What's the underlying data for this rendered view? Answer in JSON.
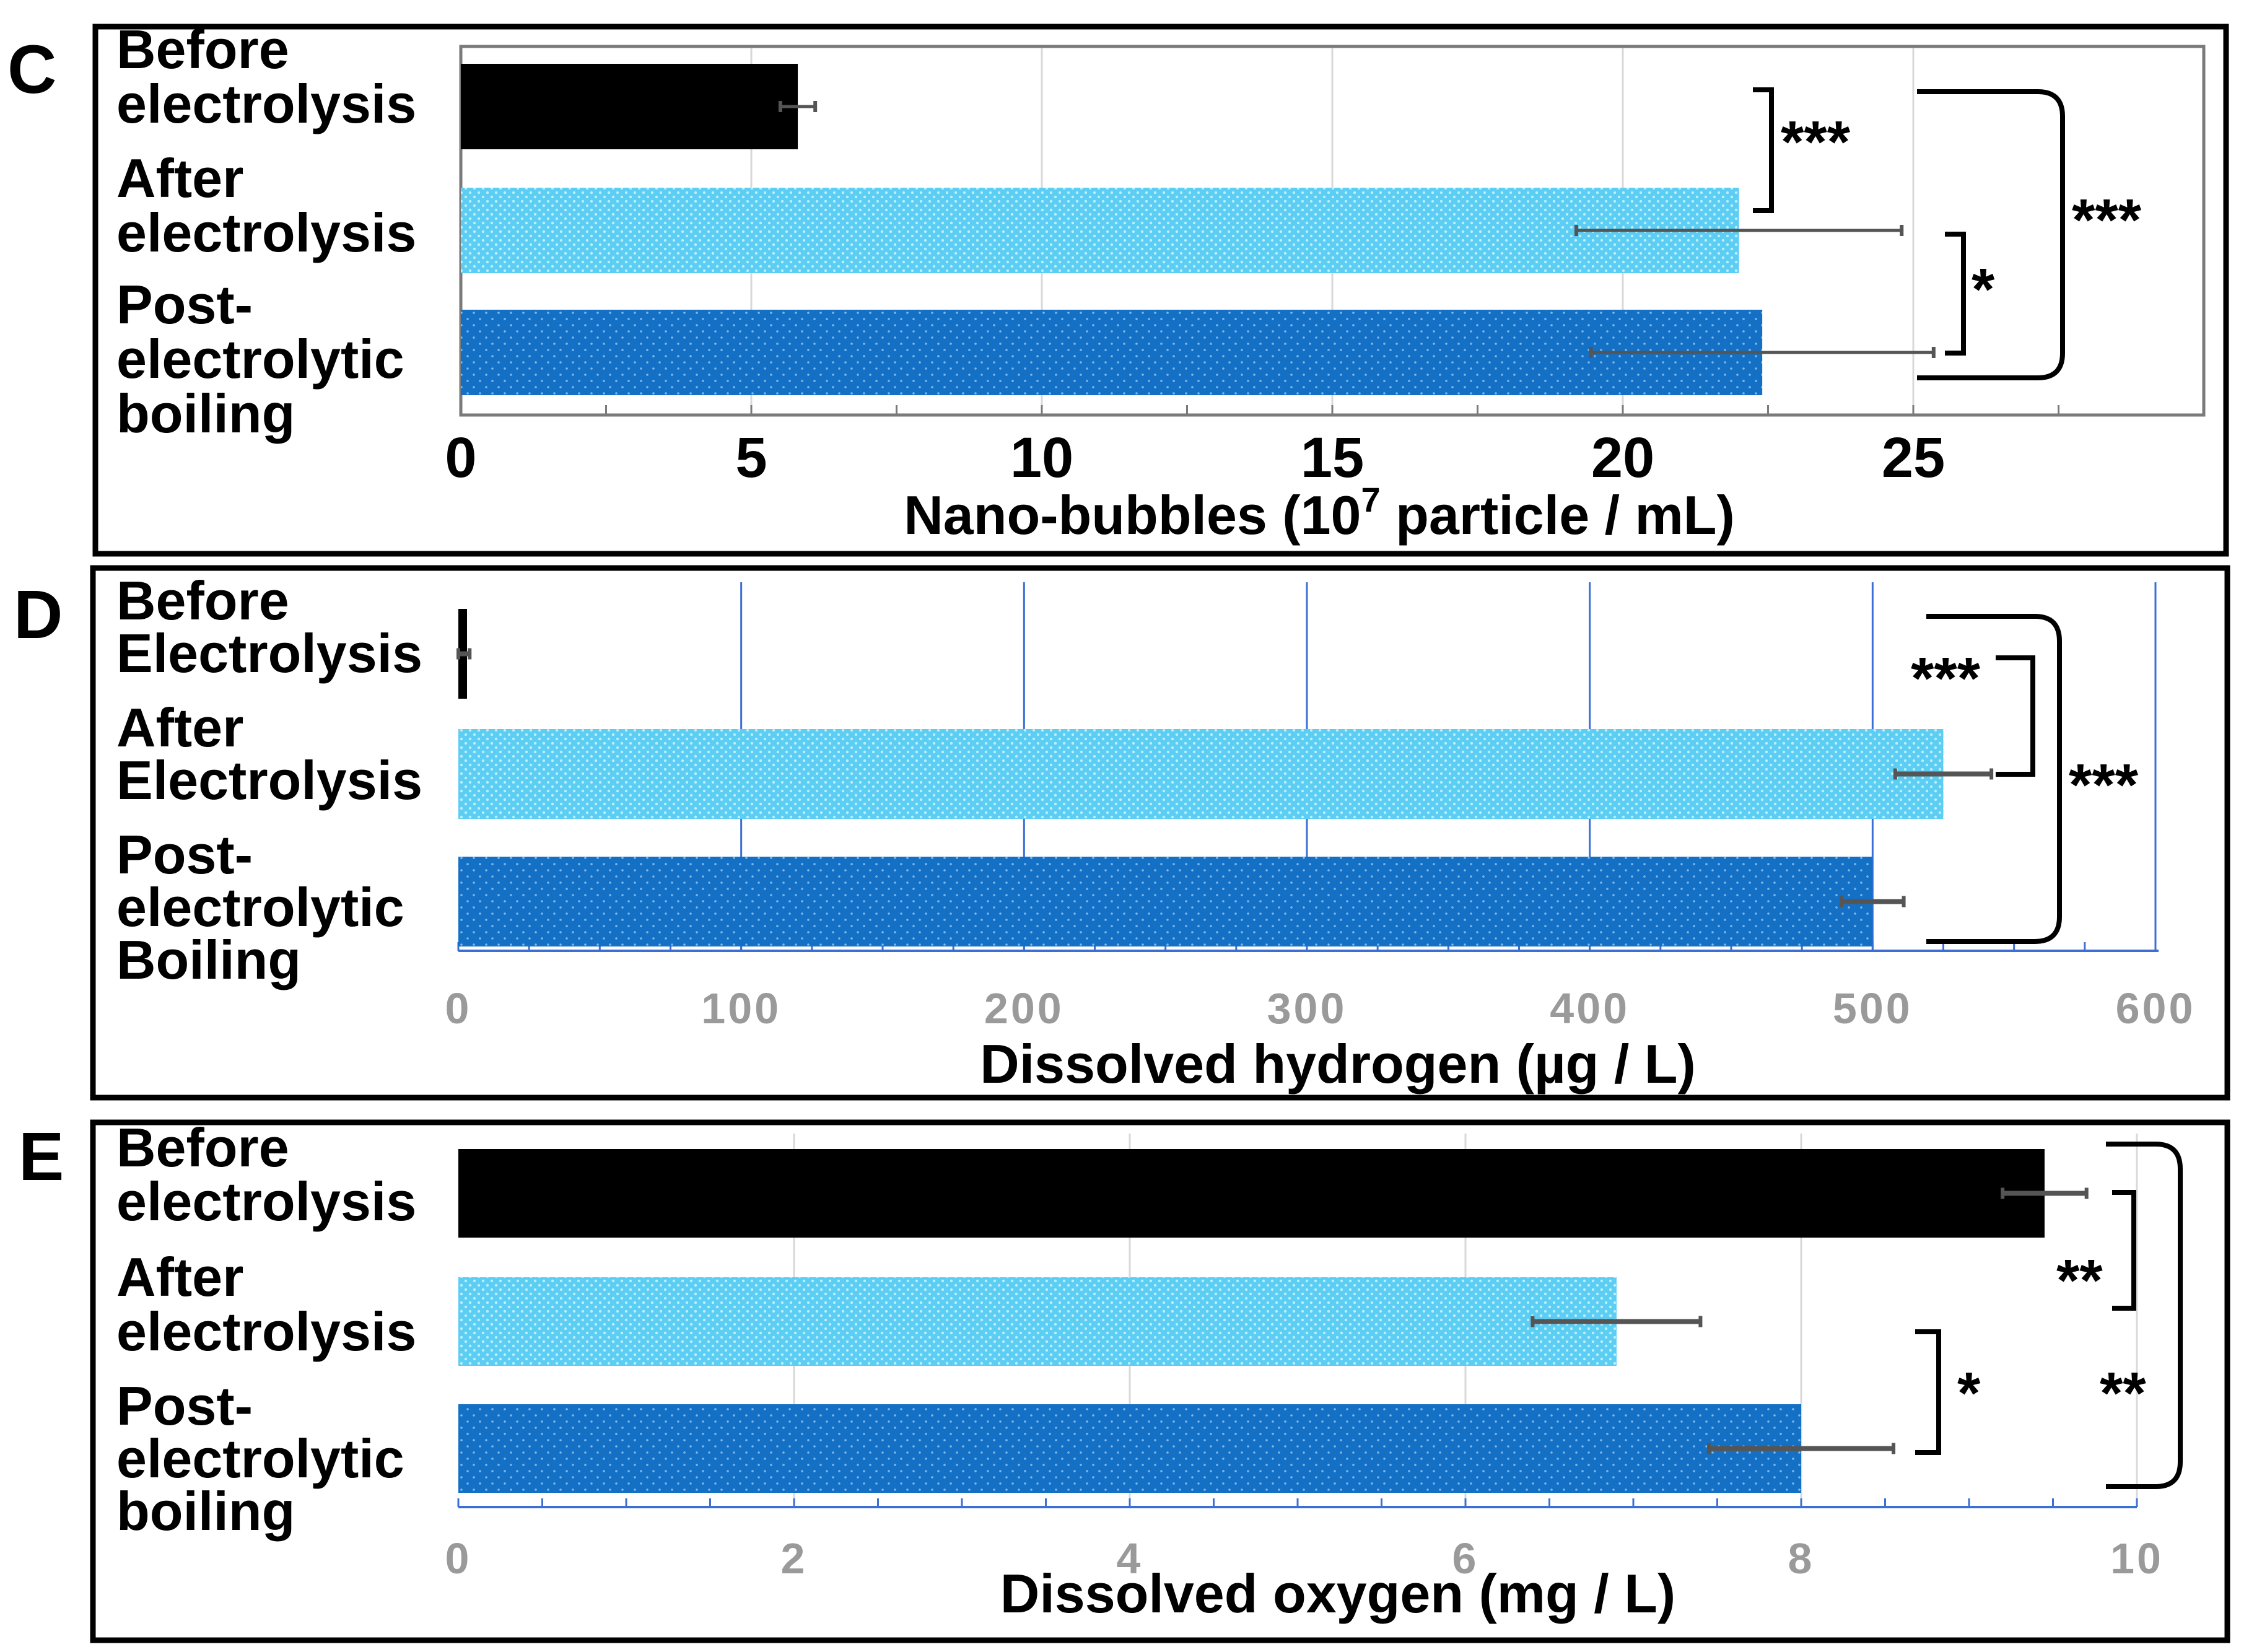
{
  "colors": {
    "before": "#000000",
    "after": "#5ccdf3",
    "post": "#1470c4"
  },
  "chart_data": [
    {
      "panel": "C",
      "type": "bar",
      "orientation": "horizontal",
      "categories": [
        [
          "Before",
          "electrolysis"
        ],
        [
          "After",
          "electrolysis"
        ],
        [
          "Post-",
          "electrolytic",
          "boiling"
        ]
      ],
      "values": [
        5.8,
        22.0,
        22.4
      ],
      "errors": [
        0.3,
        2.8,
        2.95
      ],
      "xlim": [
        0,
        30
      ],
      "xticks": [
        "0",
        "5",
        "10",
        "15",
        "20",
        "25"
      ],
      "xlabel": {
        "pre": "Nano-bubbles (10",
        "sup": "7",
        "post": " particle / mL)"
      },
      "significance": [
        {
          "from": 0,
          "to": 1,
          "label": "***"
        },
        {
          "from": 1,
          "to": 2,
          "label": "*"
        },
        {
          "from": 0,
          "to": 2,
          "label": "***"
        }
      ]
    },
    {
      "panel": "D",
      "type": "bar",
      "orientation": "horizontal",
      "categories": [
        [
          "Before",
          "Electrolysis"
        ],
        [
          "After",
          "Electrolysis"
        ],
        [
          "Post-",
          "electrolytic",
          "Boiling"
        ]
      ],
      "values": [
        2,
        525,
        500
      ],
      "errors": [
        2,
        17,
        11
      ],
      "xlim": [
        0,
        600
      ],
      "xticks": [
        "0",
        "100",
        "200",
        "300",
        "400",
        "500",
        "600"
      ],
      "xlabel": {
        "pre": "Dissolved hydrogen (µg / L)",
        "sup": "",
        "post": ""
      },
      "significance": [
        {
          "from": 0,
          "to": 1,
          "label": "***"
        },
        {
          "from": 0,
          "to": 2,
          "label": "***"
        }
      ]
    },
    {
      "panel": "E",
      "type": "bar",
      "orientation": "horizontal",
      "categories": [
        [
          "Before",
          "electrolysis"
        ],
        [
          "After",
          "electrolysis"
        ],
        [
          "Post-",
          "electrolytic",
          "boiling"
        ]
      ],
      "values": [
        9.45,
        6.9,
        8.0
      ],
      "errors": [
        0.25,
        0.5,
        0.55
      ],
      "xlim": [
        0,
        10
      ],
      "xticks": [
        "0",
        "2",
        "4",
        "6",
        "8",
        "10"
      ],
      "xlabel": {
        "pre": "Dissolved oxygen (mg / L)",
        "sup": "",
        "post": ""
      },
      "significance": [
        {
          "from": 0,
          "to": 1,
          "label": "**"
        },
        {
          "from": 1,
          "to": 2,
          "label": "*"
        },
        {
          "from": 0,
          "to": 2,
          "label": "**"
        }
      ]
    }
  ]
}
